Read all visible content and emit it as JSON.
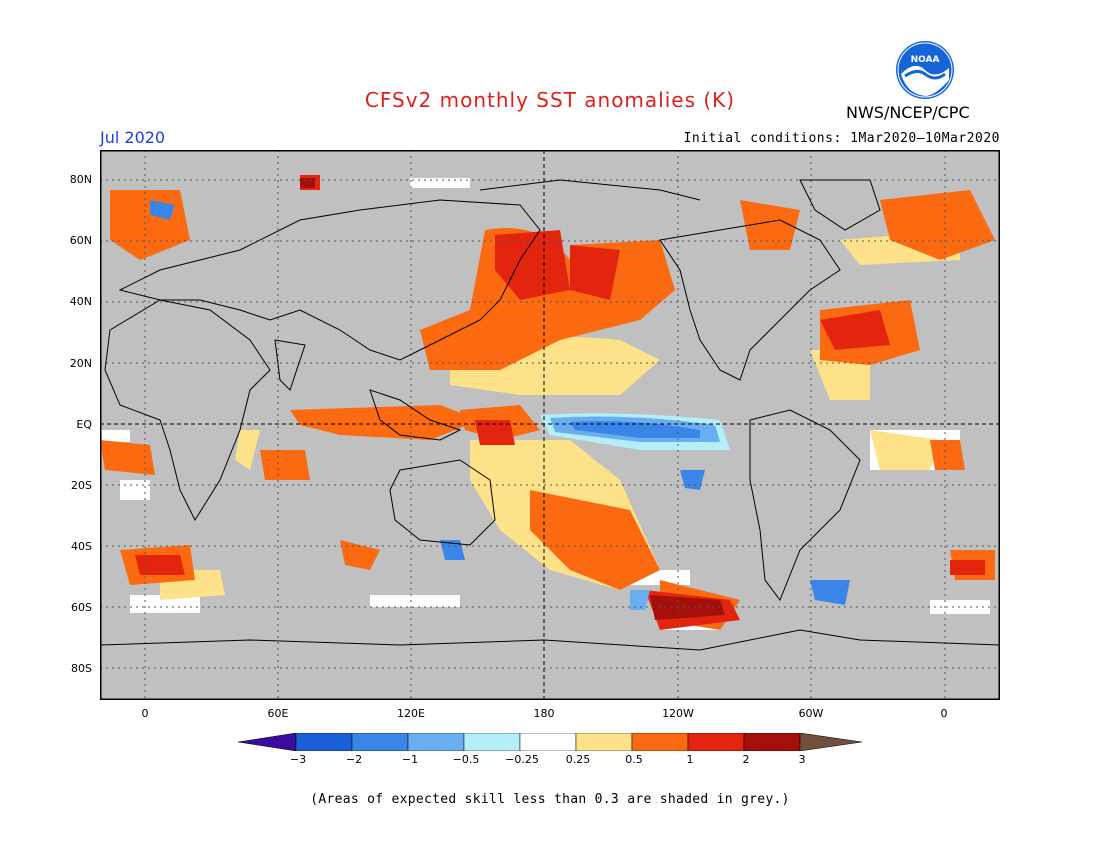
{
  "title": "CFSv2 monthly SST anomalies (K)",
  "month": "Jul 2020",
  "initial_conditions": "Initial conditions: 1Mar2020–10Mar2020",
  "agency": "NWS/NCEP/CPC",
  "logo_text": "NOAA",
  "lat_labels": [
    "80N",
    "60N",
    "40N",
    "20N",
    "EQ",
    "20S",
    "40S",
    "60S",
    "80S"
  ],
  "lon_labels": [
    "0",
    "60E",
    "120E",
    "180",
    "120W",
    "60W",
    "0"
  ],
  "colorbar": {
    "labels": [
      "−3",
      "−2",
      "−1",
      "−0.5",
      "−0.25",
      "0.25",
      "0.5",
      "1",
      "2",
      "3"
    ],
    "colors": [
      "#3a0c9e",
      "#1a5ed8",
      "#3a86e8",
      "#6aaef2",
      "#b4eef8",
      "#ffffff",
      "#fde28a",
      "#fb6a10",
      "#e3240e",
      "#a50f0a",
      "#70503c"
    ]
  },
  "note": "(Areas of expected skill less than 0.3 are shaded in grey.)",
  "colors": {
    "title": "#e0201a",
    "month": "#2040e0",
    "grey_mask": "#c0c0c0"
  }
}
